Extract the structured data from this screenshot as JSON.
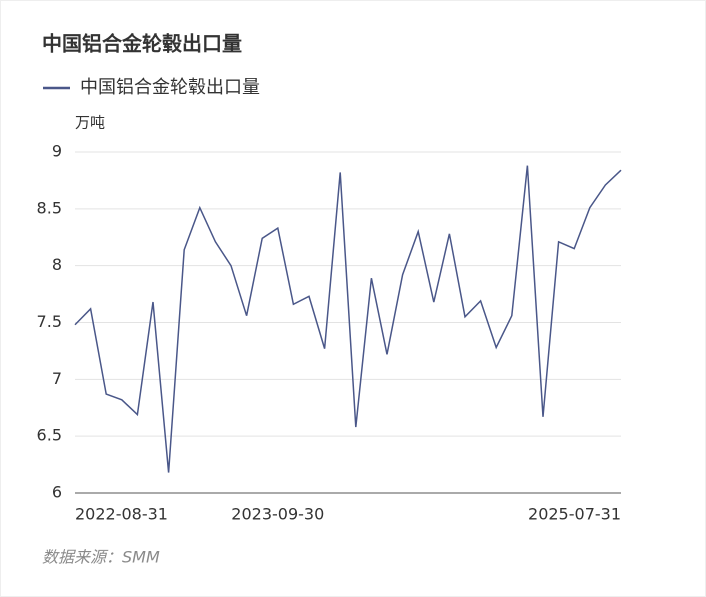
{
  "chart_data": {
    "type": "line",
    "title": "中国铝合金轮毂出口量",
    "y_label": "万吨",
    "source": "数据来源：SMM",
    "categories": [
      "2022-08-31",
      null,
      null,
      null,
      null,
      null,
      null,
      null,
      null,
      null,
      null,
      null,
      null,
      "2023-09-30",
      null,
      null,
      null,
      null,
      null,
      null,
      null,
      null,
      null,
      null,
      null,
      null,
      null,
      null,
      null,
      null,
      null,
      null,
      null,
      null,
      null,
      "2025-07-31"
    ],
    "series": [
      {
        "name": "中国铝合金轮毂出口量",
        "color": "#4a5789",
        "values": [
          7.48,
          7.62,
          6.87,
          6.82,
          6.69,
          7.68,
          6.18,
          8.14,
          8.51,
          8.21,
          8.0,
          7.56,
          8.24,
          8.33,
          7.66,
          7.73,
          7.27,
          8.82,
          6.58,
          7.89,
          7.22,
          7.92,
          8.3,
          7.68,
          8.28,
          7.55,
          7.69,
          7.28,
          7.56,
          8.88,
          6.67,
          8.21,
          8.15,
          8.51,
          8.71,
          8.84
        ]
      }
    ],
    "ylim": [
      6,
      9
    ],
    "yticks": [
      6,
      6.5,
      7,
      7.5,
      8,
      8.5,
      9
    ],
    "grid": true
  }
}
